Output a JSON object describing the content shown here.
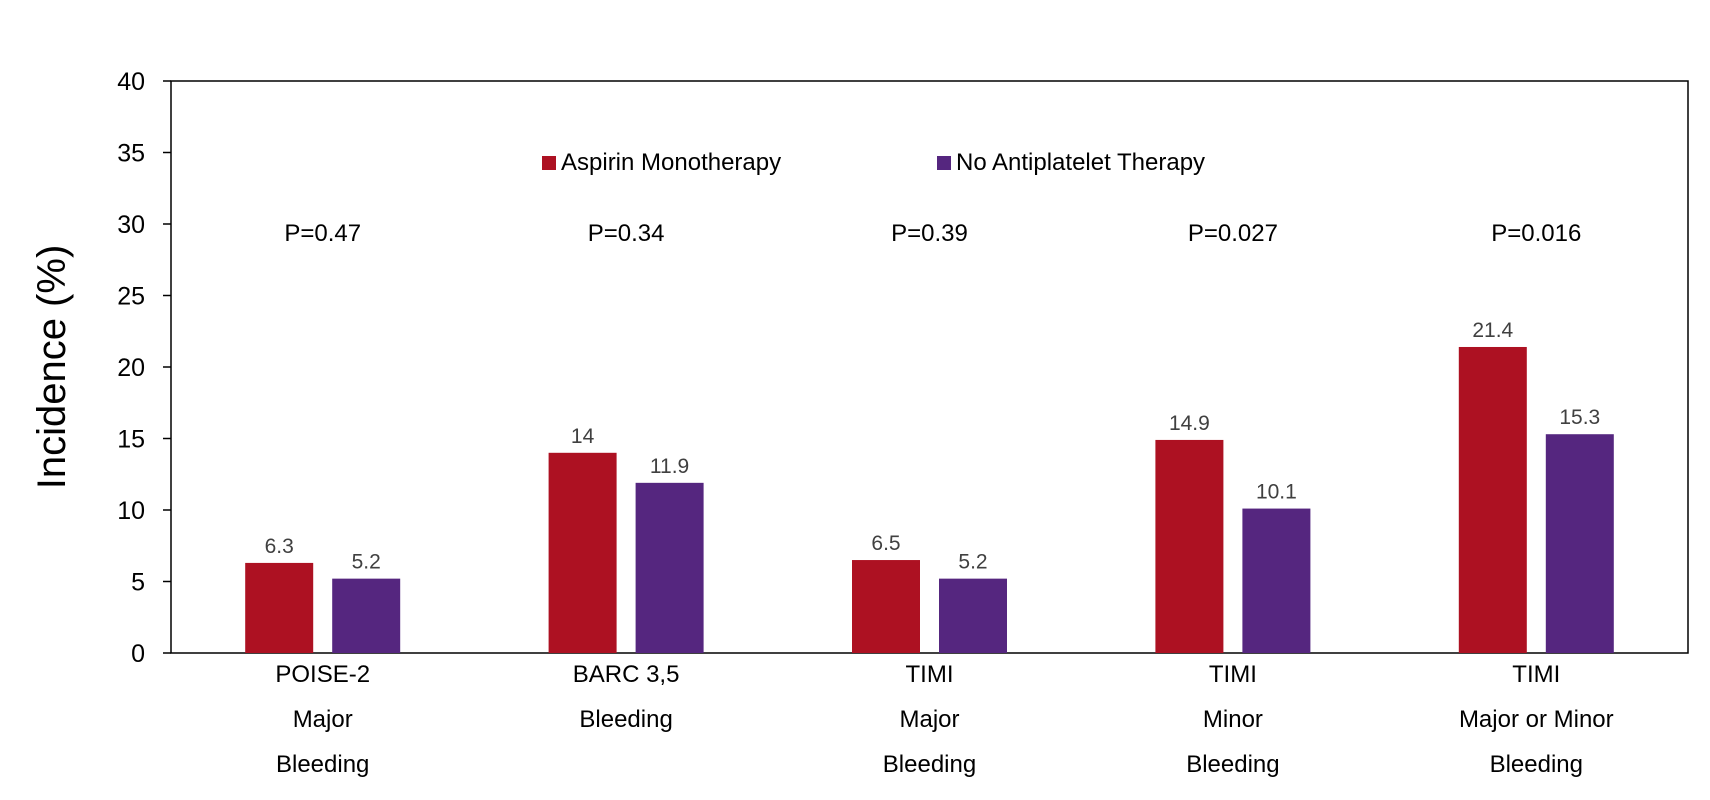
{
  "chart_data": {
    "type": "bar",
    "title": "",
    "xlabel": "",
    "ylabel": "Incidence (%)",
    "ylim": [
      0,
      40
    ],
    "yticks": [
      "0",
      "5",
      "10",
      "15",
      "20",
      "25",
      "30",
      "35",
      "40"
    ],
    "grid": false,
    "legend_position": "top-center",
    "categories": [
      [
        "POISE-2",
        "Major",
        "Bleeding"
      ],
      [
        "BARC 3,5",
        "Bleeding"
      ],
      [
        "TIMI",
        "Major",
        "Bleeding"
      ],
      [
        "TIMI",
        "Minor",
        "Bleeding"
      ],
      [
        "TIMI",
        "Major or Minor",
        "Bleeding"
      ]
    ],
    "series": [
      {
        "name": "Aspirin Monotherapy",
        "color": "#AD1122",
        "values": [
          6.3,
          14,
          6.5,
          14.9,
          21.4
        ]
      },
      {
        "name": "No Antiplatelet Therapy",
        "color": "#55267F",
        "values": [
          5.2,
          11.9,
          5.2,
          10.1,
          15.3
        ]
      }
    ],
    "annotations": [
      "P=0.47",
      "P=0.34",
      "P=0.39",
      "P=0.027",
      "P=0.016"
    ]
  }
}
